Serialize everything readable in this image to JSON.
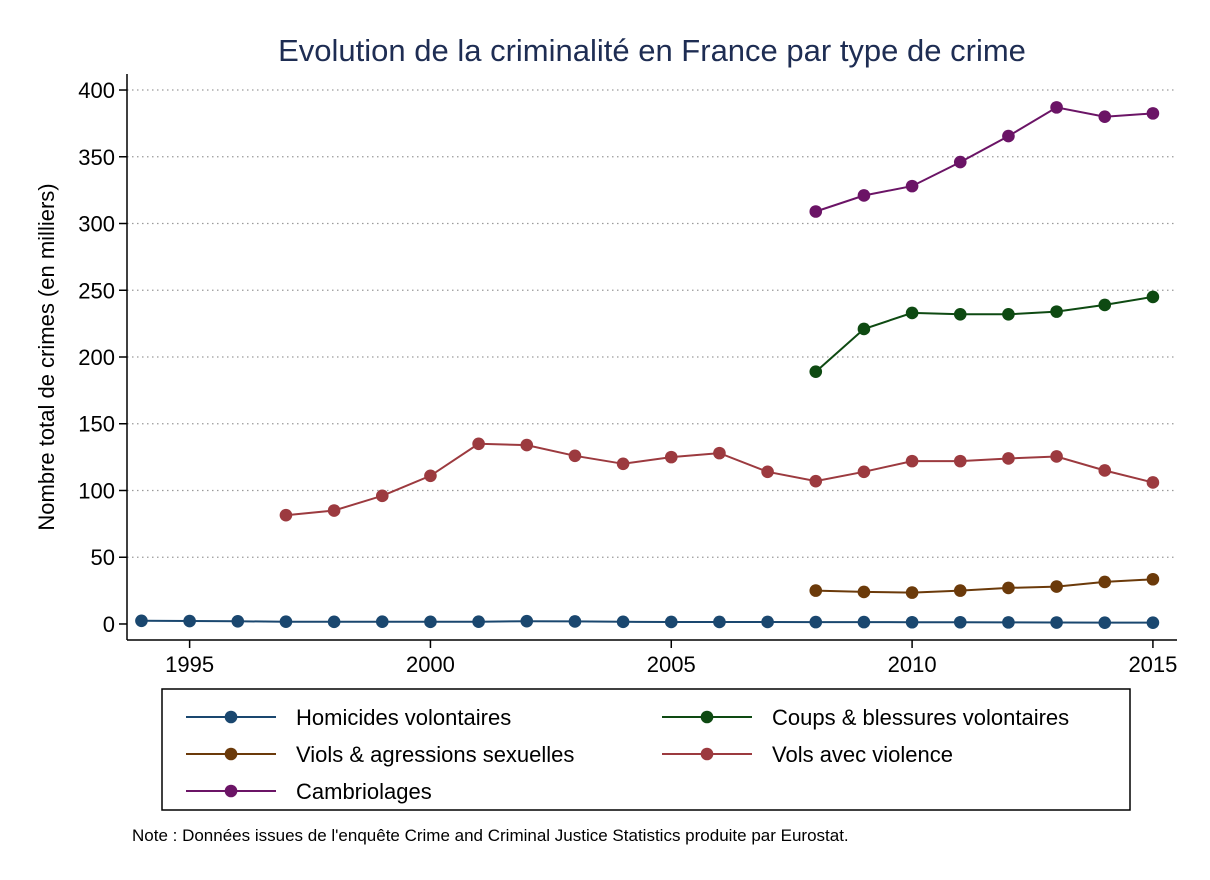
{
  "chart_data": {
    "type": "line",
    "title": "Evolution de la criminalité en France par type de crime",
    "xlabel": "",
    "ylabel": "Nombre total de crimes (en milliers)",
    "xlim": [
      1993.7,
      2015.5
    ],
    "ylim": [
      -12,
      412
    ],
    "x_ticks": [
      "1995",
      "2000",
      "2005",
      "2010",
      "2015"
    ],
    "y_ticks": [
      "0",
      "50",
      "100",
      "150",
      "200",
      "250",
      "300",
      "350",
      "400"
    ],
    "grid": "horizontal dotted",
    "legend_position": "bottom",
    "note": "Note : Données issues de l'enquête Crime and Criminal Justice Statistics produite par Eurostat.",
    "series": [
      {
        "name": "Homicides volontaires",
        "color": "#1a476f",
        "x": [
          1994,
          1995,
          1996,
          1997,
          1998,
          1999,
          2000,
          2001,
          2002,
          2003,
          2004,
          2005,
          2006,
          2007,
          2008,
          2009,
          2010,
          2011,
          2012,
          2013,
          2014,
          2015
        ],
        "y": [
          2.4,
          2.2,
          2.0,
          1.7,
          1.6,
          1.7,
          1.6,
          1.7,
          2.1,
          1.9,
          1.6,
          1.5,
          1.5,
          1.5,
          1.4,
          1.4,
          1.3,
          1.3,
          1.2,
          1.1,
          1.0,
          1.0
        ]
      },
      {
        "name": "Coups & blessures volontaires",
        "color": "#0e4a12",
        "x": [
          2008,
          2009,
          2010,
          2011,
          2012,
          2013,
          2014,
          2015
        ],
        "y": [
          189,
          221,
          233,
          232,
          232,
          234,
          239,
          245
        ]
      },
      {
        "name": "Viols & agressions sexuelles",
        "color": "#6b3a0a",
        "x": [
          2008,
          2009,
          2010,
          2011,
          2012,
          2013,
          2014,
          2015
        ],
        "y": [
          25,
          24,
          23.5,
          25,
          27,
          28,
          31.5,
          33.5
        ]
      },
      {
        "name": "Vols avec violence",
        "color": "#9c3a3f",
        "x": [
          1997,
          1998,
          1999,
          2000,
          2001,
          2002,
          2003,
          2004,
          2005,
          2006,
          2007,
          2008,
          2009,
          2010,
          2011,
          2012,
          2013,
          2014,
          2015
        ],
        "y": [
          81.5,
          85,
          96,
          111,
          135,
          134,
          126,
          120,
          125,
          128,
          114,
          107,
          114,
          122,
          122,
          124,
          125.5,
          115,
          106
        ]
      },
      {
        "name": "Cambriolages",
        "color": "#6b1466",
        "x": [
          2008,
          2009,
          2010,
          2011,
          2012,
          2013,
          2014,
          2015
        ],
        "y": [
          309,
          321,
          328,
          346,
          365.5,
          387,
          380,
          382.5
        ]
      }
    ]
  }
}
